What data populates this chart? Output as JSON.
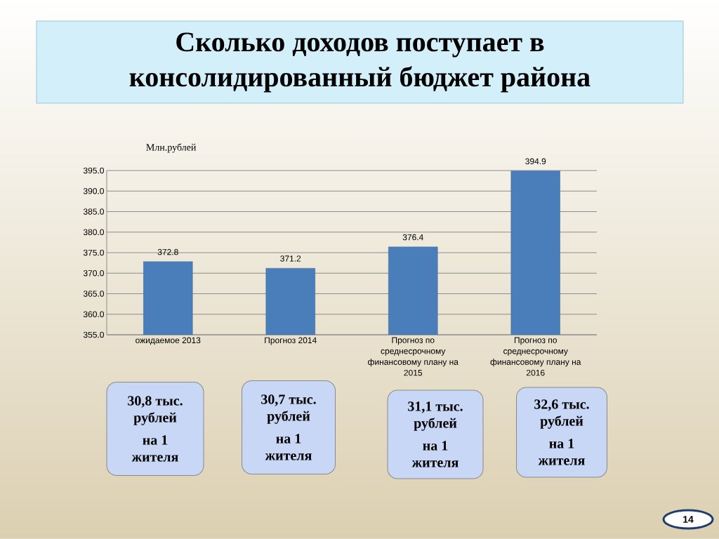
{
  "chart_data": {
    "type": "bar",
    "title": "Сколько доходов поступает в консолидированный бюджет района",
    "ylabel": "Млн.рублей",
    "categories": [
      "ожидаемое 2013",
      "Прогноз 2014",
      "Прогноз по среднесрочному финансовому плану на 2015",
      "Прогноз по среднесрочному финансовому плану на 2016"
    ],
    "values": [
      372.8,
      371.2,
      376.4,
      394.9
    ],
    "color": "#4a7ebb",
    "ylim": [
      355,
      395
    ],
    "yticks": [
      {
        "value": 355,
        "label": "355.0"
      },
      {
        "value": 360,
        "label": "360.0"
      },
      {
        "value": 365,
        "label": "365.0"
      },
      {
        "value": 370,
        "label": "370.0"
      },
      {
        "value": 375,
        "label": "375.0"
      },
      {
        "value": 380,
        "label": "380.0"
      },
      {
        "value": 385,
        "label": "385.0"
      },
      {
        "value": 390,
        "label": "390.0"
      },
      {
        "value": 395,
        "label": "395.0"
      }
    ],
    "grid": "y",
    "data_labels": true,
    "annotations": [
      "30,8 тыс. рублей",
      "на 1 жителя",
      "30,7 тыс. рублей",
      "на 1 жителя",
      "31,1 тыс. рублей",
      "на 1 жителя",
      "32,6 тыс. рублей",
      "на 1 жителя",
      "14"
    ]
  }
}
